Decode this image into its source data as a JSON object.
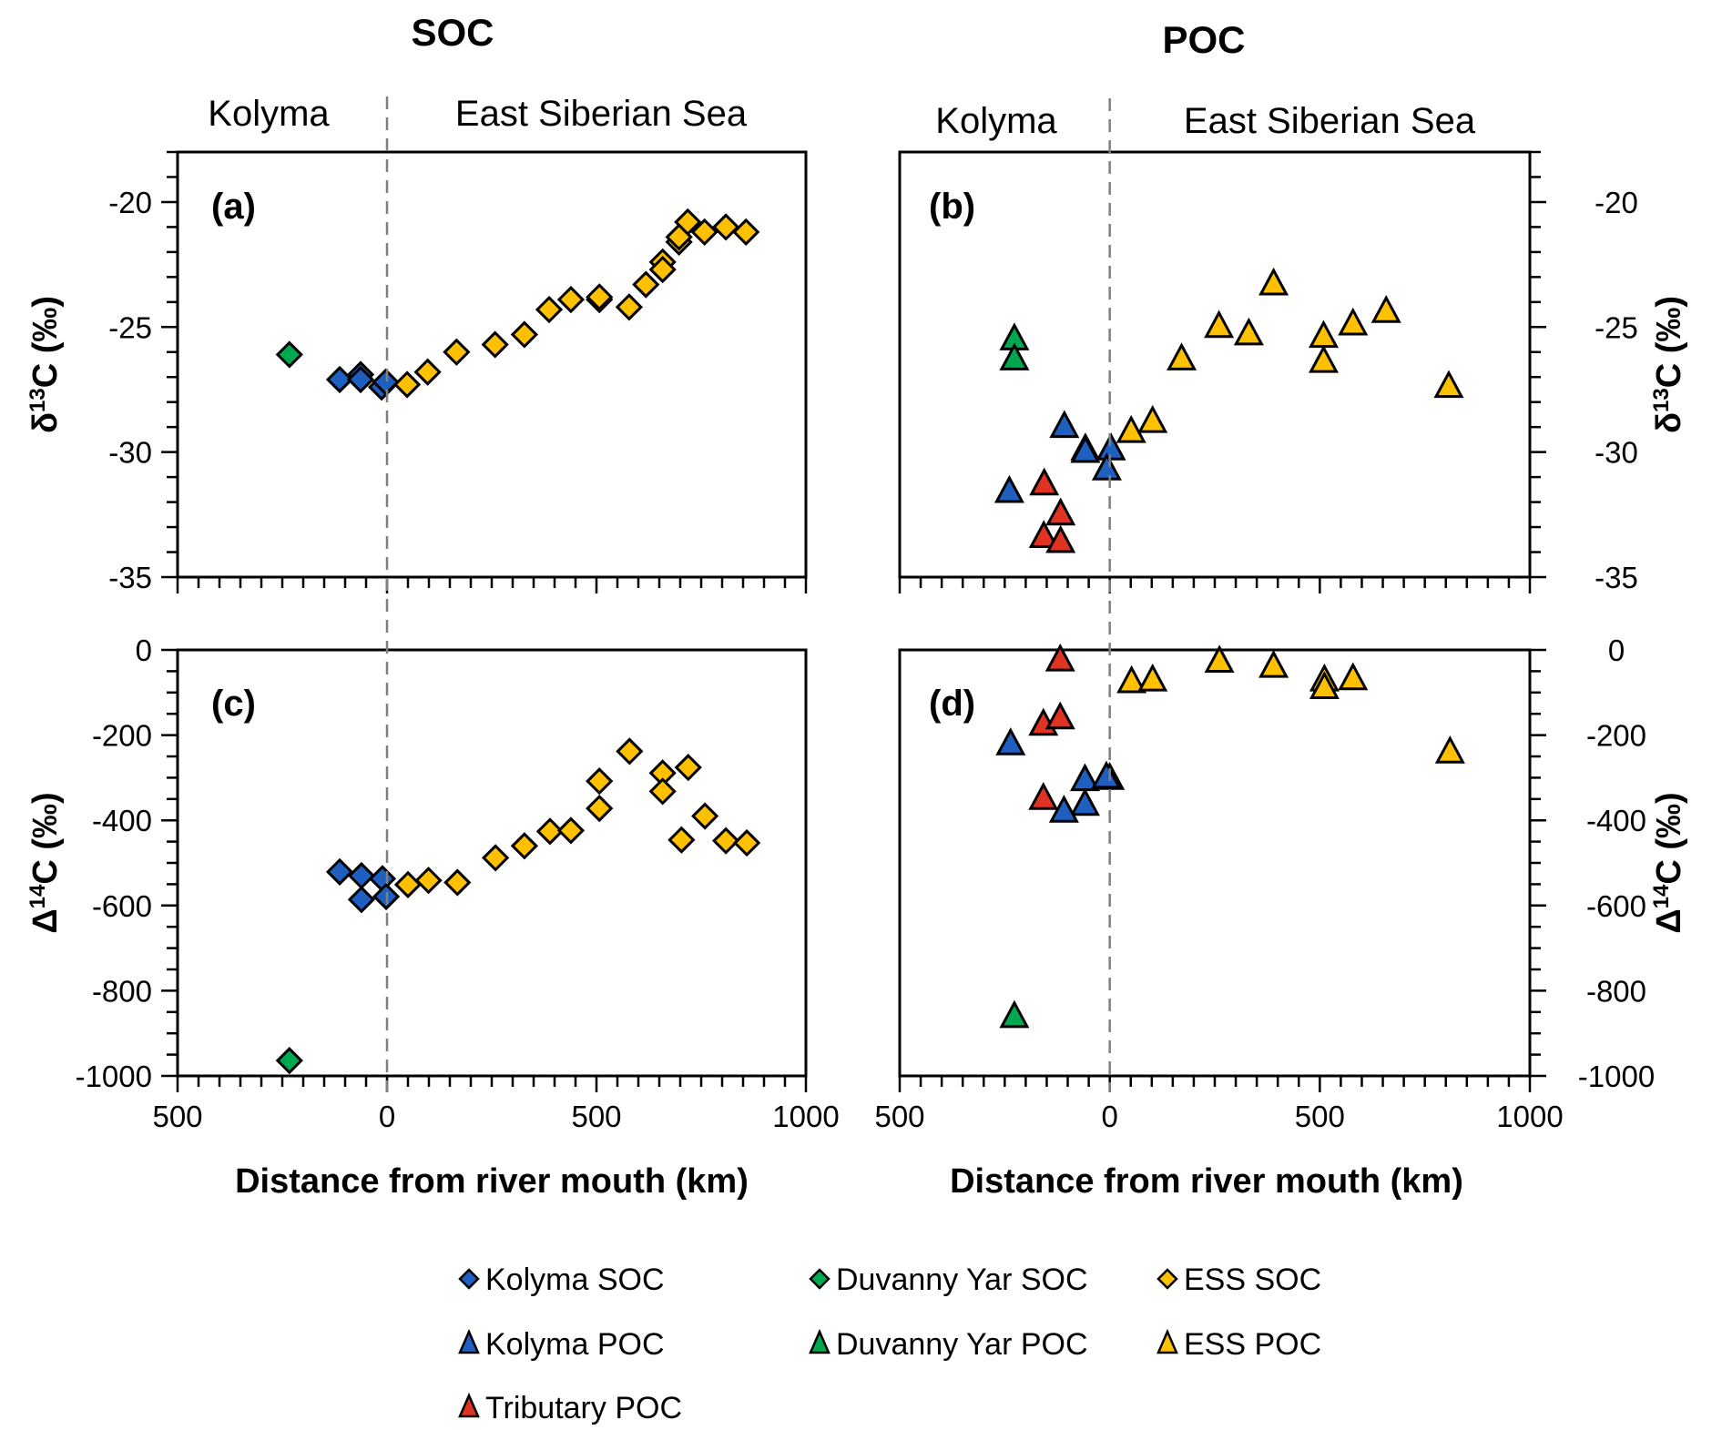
{
  "colors": {
    "kolyma": "#1f5fc0",
    "duvanny": "#00a94f",
    "ess": "#ffc000",
    "tributary": "#e03322",
    "divider": "#808080"
  },
  "headers": {
    "soc_title": "SOC",
    "poc_title": "POC",
    "left_region": "Kolyma",
    "right_region": "East Siberian Sea"
  },
  "legend": {
    "items": [
      {
        "label": "Kolyma SOC",
        "marker": "diamond",
        "color_key": "kolyma"
      },
      {
        "label": "Duvanny Yar SOC",
        "marker": "diamond",
        "color_key": "duvanny"
      },
      {
        "label": "ESS SOC",
        "marker": "diamond",
        "color_key": "ess"
      },
      {
        "label": "Kolyma POC",
        "marker": "triangle",
        "color_key": "kolyma"
      },
      {
        "label": "Duvanny Yar POC",
        "marker": "triangle",
        "color_key": "duvanny"
      },
      {
        "label": "ESS POC",
        "marker": "triangle",
        "color_key": "ess"
      },
      {
        "label": "Tributary POC",
        "marker": "triangle",
        "color_key": "tributary"
      }
    ]
  },
  "chart_data": [
    {
      "panel": "(a)",
      "type": "scatter",
      "title": "SOC",
      "xlabel": "",
      "ylabel": "δ13C (‰)",
      "ylabel_main": "δ",
      "ylabel_sup": "13",
      "ylabel_rest": "C  (‰)",
      "xlim": [
        -500,
        1000
      ],
      "ylim": [
        -35,
        -18
      ],
      "xticks": [
        -500,
        0,
        500,
        1000
      ],
      "xtick_labels": [
        "500",
        "0",
        "500",
        "1000"
      ],
      "yticks": [
        -35,
        -30,
        -25,
        -20
      ],
      "ytick_labels": [
        "-35",
        "-30",
        "-25",
        "-20"
      ],
      "y_axis_side": "left",
      "divider_x": 0,
      "series": [
        {
          "name": "Kolyma SOC",
          "marker": "diamond",
          "color_key": "kolyma",
          "points": [
            [
              -113,
              -27.1
            ],
            [
              -63,
              -26.9
            ],
            [
              -63,
              -27.1
            ],
            [
              -13,
              -27.4
            ],
            [
              -3,
              -27.2
            ]
          ]
        },
        {
          "name": "Duvanny Yar SOC",
          "marker": "diamond",
          "color_key": "duvanny",
          "points": [
            [
              -233,
              -26.1
            ]
          ]
        },
        {
          "name": "ESS SOC",
          "marker": "diamond",
          "color_key": "ess",
          "points": [
            [
              48,
              -27.3
            ],
            [
              97,
              -26.8
            ],
            [
              166,
              -26.0
            ],
            [
              258,
              -25.7
            ],
            [
              328,
              -25.3
            ],
            [
              387,
              -24.3
            ],
            [
              439,
              -23.9
            ],
            [
              507,
              -23.9
            ],
            [
              507,
              -23.8
            ],
            [
              578,
              -24.2
            ],
            [
              618,
              -23.3
            ],
            [
              658,
              -22.4
            ],
            [
              658,
              -22.7
            ],
            [
              697,
              -21.6
            ],
            [
              697,
              -21.4
            ],
            [
              718,
              -20.8
            ],
            [
              758,
              -21.2
            ],
            [
              809,
              -21.0
            ],
            [
              857,
              -21.2
            ]
          ]
        }
      ]
    },
    {
      "panel": "(b)",
      "type": "scatter",
      "title": "POC",
      "xlabel": "",
      "ylabel": "δ13C (‰)",
      "ylabel_main": "δ",
      "ylabel_sup": "13",
      "ylabel_rest": "C  (‰)",
      "xlim": [
        -500,
        1000
      ],
      "ylim": [
        -35,
        -18
      ],
      "xticks": [
        -500,
        0,
        500,
        1000
      ],
      "xtick_labels": [
        "500",
        "0",
        "500",
        "1000"
      ],
      "yticks": [
        -35,
        -30,
        -25,
        -20
      ],
      "ytick_labels": [
        "-35",
        "-30",
        "-25",
        "-20"
      ],
      "y_axis_side": "right",
      "divider_x": 0,
      "series": [
        {
          "name": "Kolyma POC",
          "marker": "triangle",
          "color_key": "kolyma",
          "points": [
            [
              -239,
              -31.6
            ],
            [
              -108,
              -29.0
            ],
            [
              -58,
              -29.9
            ],
            [
              -58,
              -30.0
            ],
            [
              3,
              -29.9
            ],
            [
              -7,
              -30.7
            ]
          ]
        },
        {
          "name": "Duvanny Yar POC",
          "marker": "triangle",
          "color_key": "duvanny",
          "points": [
            [
              -227,
              -25.5
            ],
            [
              -227,
              -26.3
            ]
          ]
        },
        {
          "name": "Tributary POC",
          "marker": "triangle",
          "color_key": "tributary",
          "points": [
            [
              -156,
              -31.3
            ],
            [
              -117,
              -32.5
            ],
            [
              -157,
              -33.4
            ],
            [
              -117,
              -33.6
            ]
          ]
        },
        {
          "name": "ESS POC",
          "marker": "triangle",
          "color_key": "ess",
          "points": [
            [
              51,
              -29.2
            ],
            [
              102,
              -28.8
            ],
            [
              171,
              -26.3
            ],
            [
              260,
              -25.0
            ],
            [
              331,
              -25.3
            ],
            [
              390,
              -23.3
            ],
            [
              509,
              -25.4
            ],
            [
              509,
              -26.4
            ],
            [
              579,
              -24.9
            ],
            [
              658,
              -24.4
            ],
            [
              807,
              -27.4
            ]
          ]
        }
      ]
    },
    {
      "panel": "(c)",
      "type": "scatter",
      "title": "",
      "xlabel": "Distance from river mouth (km)",
      "ylabel": "Δ14C (‰)",
      "ylabel_main": "Δ",
      "ylabel_sup": "14",
      "ylabel_rest": "C (‰)",
      "xlim": [
        -500,
        1000
      ],
      "ylim": [
        -1000,
        0
      ],
      "xticks": [
        -500,
        0,
        500,
        1000
      ],
      "xtick_labels": [
        "500",
        "0",
        "500",
        "1000"
      ],
      "yticks": [
        -1000,
        -800,
        -600,
        -400,
        -200,
        0
      ],
      "ytick_labels": [
        "-1000",
        "-800",
        "-600",
        "-400",
        "-200",
        "0"
      ],
      "y_axis_side": "left",
      "divider_x": 0,
      "series": [
        {
          "name": "Kolyma SOC",
          "marker": "diamond",
          "color_key": "kolyma",
          "points": [
            [
              -113,
              -521
            ],
            [
              -61,
              -530
            ],
            [
              -11,
              -537
            ],
            [
              -61,
              -586
            ],
            [
              -2,
              -579
            ]
          ]
        },
        {
          "name": "Duvanny Yar SOC",
          "marker": "diamond",
          "color_key": "duvanny",
          "points": [
            [
              -233,
              -964
            ]
          ]
        },
        {
          "name": "ESS SOC",
          "marker": "diamond",
          "color_key": "ess",
          "points": [
            [
              50,
              -551
            ],
            [
              99,
              -541
            ],
            [
              168,
              -546
            ],
            [
              259,
              -488
            ],
            [
              328,
              -460
            ],
            [
              389,
              -426
            ],
            [
              439,
              -424
            ],
            [
              507,
              -372
            ],
            [
              507,
              -308
            ],
            [
              579,
              -238
            ],
            [
              658,
              -289
            ],
            [
              658,
              -332
            ],
            [
              719,
              -276
            ],
            [
              703,
              -446
            ],
            [
              759,
              -390
            ],
            [
              809,
              -448
            ],
            [
              859,
              -453
            ]
          ]
        }
      ]
    },
    {
      "panel": "(d)",
      "type": "scatter",
      "title": "",
      "xlabel": "Distance from river mouth (km)",
      "ylabel": "Δ14C (‰)",
      "ylabel_main": "Δ",
      "ylabel_sup": "14",
      "ylabel_rest": "C (‰)",
      "xlim": [
        -500,
        1000
      ],
      "ylim": [
        -1000,
        0
      ],
      "xticks": [
        -500,
        0,
        500,
        1000
      ],
      "xtick_labels": [
        "500",
        "0",
        "500",
        "1000"
      ],
      "yticks": [
        -1000,
        -800,
        -600,
        -400,
        -200,
        0
      ],
      "ytick_labels": [
        "-1000",
        "-800",
        "-600",
        "-400",
        "-200",
        "0"
      ],
      "y_axis_side": "right",
      "divider_x": 0,
      "series": [
        {
          "name": "Kolyma POC",
          "marker": "triangle",
          "color_key": "kolyma",
          "points": [
            [
              -236,
              -222
            ],
            [
              -59,
              -306
            ],
            [
              0,
              -303
            ],
            [
              -8,
              -300
            ],
            [
              -59,
              -364
            ],
            [
              -109,
              -380
            ]
          ]
        },
        {
          "name": "Duvanny Yar POC",
          "marker": "triangle",
          "color_key": "duvanny",
          "points": [
            [
              -227,
              -862
            ]
          ]
        },
        {
          "name": "Tributary POC",
          "marker": "triangle",
          "color_key": "tributary",
          "points": [
            [
              -118,
              -25
            ],
            [
              -158,
              -176
            ],
            [
              -118,
              -161
            ],
            [
              -158,
              -350
            ]
          ]
        },
        {
          "name": "ESS POC",
          "marker": "triangle",
          "color_key": "ess",
          "points": [
            [
              52,
              -76
            ],
            [
              102,
              -72
            ],
            [
              261,
              -28
            ],
            [
              390,
              -40
            ],
            [
              511,
              -72
            ],
            [
              511,
              -90
            ],
            [
              579,
              -69
            ],
            [
              810,
              -241
            ]
          ]
        }
      ]
    }
  ]
}
